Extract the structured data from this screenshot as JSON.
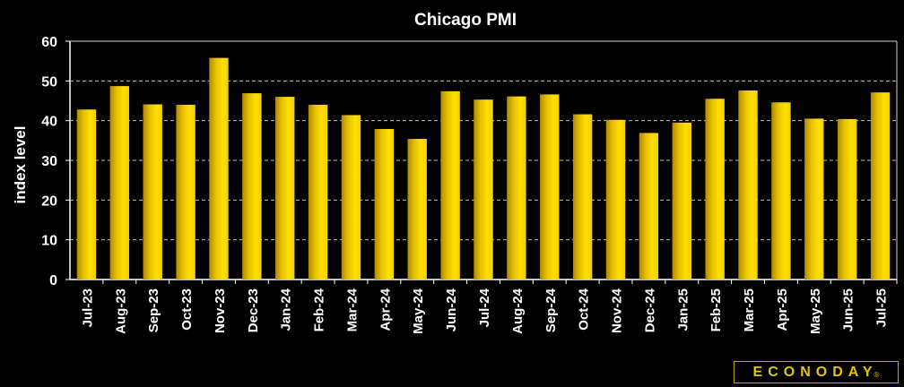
{
  "chart_data": {
    "type": "bar",
    "title": "Chicago PMI",
    "xlabel": "",
    "ylabel": "index level",
    "ylim": [
      0,
      60
    ],
    "yticks": [
      0,
      10,
      20,
      30,
      40,
      50,
      60
    ],
    "grid": true,
    "categories": [
      "Jul-23",
      "Aug-23",
      "Sep-23",
      "Oct-23",
      "Nov-23",
      "Dec-23",
      "Jan-24",
      "Feb-24",
      "Mar-24",
      "Apr-24",
      "May-24",
      "Jun-24",
      "Jul-24",
      "Aug-24",
      "Sep-24",
      "Oct-24",
      "Nov-24",
      "Dec-24",
      "Jan-25",
      "Feb-25",
      "Mar-25",
      "Apr-25",
      "May-25",
      "Jun-25",
      "Jul-25"
    ],
    "values": [
      42.8,
      48.7,
      44.1,
      44.0,
      55.8,
      46.9,
      46.0,
      44.0,
      41.4,
      37.9,
      35.4,
      47.4,
      45.3,
      46.1,
      46.6,
      41.6,
      40.2,
      36.9,
      39.5,
      45.5,
      47.6,
      44.6,
      40.5,
      40.4,
      47.1
    ],
    "bar_color": "#f0c800"
  },
  "logo": {
    "text": "ECONODAY",
    "mark": "®"
  }
}
